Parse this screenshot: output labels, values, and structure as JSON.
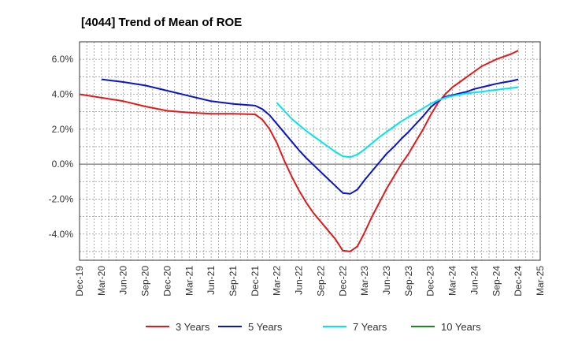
{
  "chart_data": {
    "type": "line",
    "title": "[4044]  Trend of Mean of ROE",
    "xlabel": "",
    "ylabel": "",
    "x_ticks": [
      "Dec-19",
      "Mar-20",
      "Jun-20",
      "Sep-20",
      "Dec-20",
      "Mar-21",
      "Jun-21",
      "Sep-21",
      "Dec-21",
      "Mar-22",
      "Jun-22",
      "Sep-22",
      "Dec-22",
      "Mar-23",
      "Jun-23",
      "Sep-23",
      "Dec-23",
      "Mar-24",
      "Jun-24",
      "Sep-24",
      "Dec-24",
      "Mar-25"
    ],
    "y_ticks": [
      "-4.0%",
      "-2.0%",
      "0.0%",
      "2.0%",
      "4.0%",
      "6.0%"
    ],
    "ylim": [
      -5.5,
      7.0
    ],
    "grid": true,
    "legend_position": "bottom",
    "series": [
      {
        "name": "3 Years",
        "color": "#e31a1c",
        "x": [
          "Dec-19",
          "Mar-20",
          "Jun-20",
          "Sep-20",
          "Dec-20",
          "Mar-21",
          "Jun-21",
          "Sep-21",
          "Dec-21",
          "Jan-22",
          "Feb-22",
          "Mar-22",
          "Apr-22",
          "May-22",
          "Jun-22",
          "Jul-22",
          "Aug-22",
          "Sep-22",
          "Oct-22",
          "Nov-22",
          "Dec-22",
          "Jan-23",
          "Feb-23",
          "Mar-23",
          "Apr-23",
          "May-23",
          "Jun-23",
          "Jul-23",
          "Aug-23",
          "Sep-23",
          "Oct-23",
          "Nov-23",
          "Dec-23",
          "Jan-24",
          "Feb-24",
          "Mar-24",
          "Apr-24",
          "May-24",
          "Jun-24",
          "Jul-24",
          "Aug-24",
          "Sep-24",
          "Oct-24",
          "Nov-24",
          "Dec-24"
        ],
        "values": [
          4.0,
          3.8,
          3.6,
          3.3,
          3.05,
          2.95,
          2.88,
          2.88,
          2.85,
          2.55,
          2.0,
          1.2,
          0.2,
          -0.7,
          -1.5,
          -2.2,
          -2.8,
          -3.3,
          -3.8,
          -4.3,
          -4.95,
          -5.0,
          -4.7,
          -3.9,
          -3.0,
          -2.2,
          -1.4,
          -0.7,
          0.0,
          0.6,
          1.3,
          2.0,
          2.8,
          3.5,
          4.0,
          4.4,
          4.7,
          5.0,
          5.3,
          5.6,
          5.8,
          6.0,
          6.15,
          6.3,
          6.5
        ]
      },
      {
        "name": "5 Years",
        "color": "#0a14c8",
        "x": [
          "Mar-20",
          "Jun-20",
          "Sep-20",
          "Dec-20",
          "Mar-21",
          "Jun-21",
          "Sep-21",
          "Dec-21",
          "Jan-22",
          "Feb-22",
          "Mar-22",
          "Apr-22",
          "May-22",
          "Jun-22",
          "Jul-22",
          "Aug-22",
          "Sep-22",
          "Oct-22",
          "Nov-22",
          "Dec-22",
          "Jan-23",
          "Feb-23",
          "Mar-23",
          "Apr-23",
          "May-23",
          "Jun-23",
          "Jul-23",
          "Aug-23",
          "Sep-23",
          "Oct-23",
          "Nov-23",
          "Dec-23",
          "Jan-24",
          "Feb-24",
          "Mar-24",
          "Apr-24",
          "May-24",
          "Jun-24",
          "Jul-24",
          "Aug-24",
          "Sep-24",
          "Oct-24",
          "Nov-24",
          "Dec-24"
        ],
        "values": [
          4.85,
          4.7,
          4.5,
          4.2,
          3.9,
          3.6,
          3.45,
          3.35,
          3.15,
          2.8,
          2.3,
          1.8,
          1.3,
          0.8,
          0.35,
          -0.05,
          -0.45,
          -0.85,
          -1.25,
          -1.65,
          -1.7,
          -1.45,
          -0.9,
          -0.4,
          0.1,
          0.6,
          1.0,
          1.45,
          1.85,
          2.3,
          2.75,
          3.25,
          3.6,
          3.85,
          3.95,
          4.05,
          4.15,
          4.3,
          4.4,
          4.5,
          4.6,
          4.68,
          4.75,
          4.85
        ]
      },
      {
        "name": "7 Years",
        "color": "#00e5ee",
        "x": [
          "Mar-22",
          "Apr-22",
          "May-22",
          "Jun-22",
          "Jul-22",
          "Aug-22",
          "Sep-22",
          "Oct-22",
          "Nov-22",
          "Dec-22",
          "Jan-23",
          "Feb-23",
          "Mar-23",
          "Apr-23",
          "May-23",
          "Jun-23",
          "Jul-23",
          "Aug-23",
          "Sep-23",
          "Oct-23",
          "Nov-23",
          "Dec-23",
          "Jan-24",
          "Feb-24",
          "Mar-24",
          "Apr-24",
          "May-24",
          "Jun-24",
          "Jul-24",
          "Aug-24",
          "Sep-24",
          "Oct-24",
          "Nov-24",
          "Dec-24"
        ],
        "values": [
          3.5,
          3.05,
          2.6,
          2.25,
          1.9,
          1.6,
          1.3,
          1.0,
          0.7,
          0.45,
          0.4,
          0.55,
          0.85,
          1.2,
          1.55,
          1.85,
          2.15,
          2.45,
          2.7,
          2.95,
          3.2,
          3.45,
          3.65,
          3.8,
          3.9,
          3.98,
          4.05,
          4.1,
          4.15,
          4.2,
          4.25,
          4.3,
          4.35,
          4.4
        ]
      },
      {
        "name": "10 Years",
        "color": "#1a8a1a",
        "x": [],
        "values": []
      }
    ]
  }
}
